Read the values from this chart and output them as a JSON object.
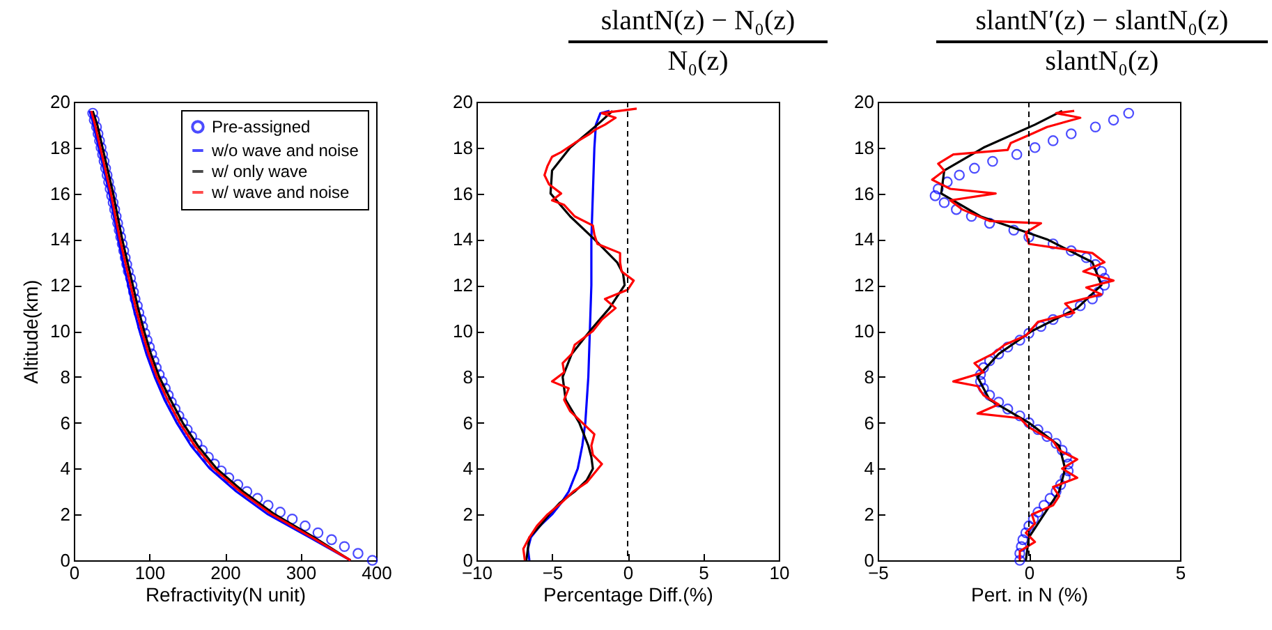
{
  "chart_data": [
    {
      "type": "line",
      "xlabel": "Refractivity(N unit)",
      "ylabel": "Altitude(km)",
      "xlim": [
        0,
        400
      ],
      "xticks": [
        0,
        100,
        200,
        300,
        400
      ],
      "ylim": [
        0,
        20
      ],
      "yticks": [
        0,
        2,
        4,
        6,
        8,
        10,
        12,
        14,
        16,
        18,
        20
      ],
      "legend": "top right",
      "series": [
        {
          "name": "Pre-assigned",
          "type": "scatter",
          "marker": "circle",
          "color": "#0000ff",
          "x": [
            395,
            376,
            358,
            341,
            323,
            306,
            289,
            273,
            257,
            243,
            229,
            217,
            205,
            195,
            186,
            178,
            170,
            163,
            156,
            150,
            144,
            139,
            134,
            129,
            125,
            121,
            117,
            113,
            109,
            106,
            103,
            100,
            97,
            94,
            91,
            89,
            86,
            84,
            81,
            79,
            77,
            75,
            72,
            70,
            68,
            66,
            64,
            62,
            60,
            58,
            56,
            54,
            52,
            50,
            48,
            46,
            44,
            42,
            40,
            38,
            36,
            34,
            32,
            30,
            27,
            25
          ],
          "values": [
            0,
            0.3,
            0.6,
            0.9,
            1.2,
            1.5,
            1.8,
            2.1,
            2.4,
            2.7,
            3,
            3.3,
            3.6,
            3.9,
            4.2,
            4.5,
            4.8,
            5.1,
            5.4,
            5.7,
            6,
            6.3,
            6.6,
            6.9,
            7.2,
            7.5,
            7.8,
            8.1,
            8.4,
            8.7,
            9,
            9.3,
            9.6,
            9.9,
            10.2,
            10.5,
            10.8,
            11.1,
            11.4,
            11.7,
            12,
            12.3,
            12.6,
            12.9,
            13.2,
            13.5,
            13.8,
            14.1,
            14.4,
            14.7,
            15,
            15.3,
            15.6,
            15.9,
            16.2,
            16.5,
            16.8,
            17.1,
            17.4,
            17.7,
            18,
            18.3,
            18.6,
            18.9,
            19.2,
            19.5
          ]
        },
        {
          "name": "w/o wave and noise",
          "color": "#0000ff",
          "x": [
            366,
            312,
            257,
            215,
            180,
            155,
            136,
            120,
            107,
            96,
            87,
            79,
            72,
            65,
            59,
            53,
            47,
            40,
            33,
            26,
            21
          ],
          "values": [
            0,
            1,
            2,
            3,
            4,
            5,
            6,
            7,
            8,
            9,
            10,
            11,
            12,
            13,
            14,
            15,
            16,
            17,
            18,
            19,
            19.6
          ]
        },
        {
          "name": "w/ only wave",
          "color": "#000000",
          "x": [
            366,
            318,
            266,
            224,
            189,
            164,
            144,
            128,
            113,
            102,
            93,
            85,
            78,
            71,
            64,
            58,
            52,
            45,
            38,
            31,
            25
          ],
          "values": [
            0,
            1,
            2,
            3,
            4,
            5,
            6,
            7,
            8,
            9,
            10,
            11,
            12,
            13,
            14,
            15,
            16,
            17,
            18,
            19,
            19.6
          ]
        },
        {
          "name": "w/ wave and noise",
          "color": "#ff0000",
          "x": [
            366,
            315,
            262,
            220,
            185,
            160,
            140,
            124,
            110,
            99,
            90,
            82,
            75,
            68,
            61,
            55,
            49,
            42,
            35,
            28,
            23
          ],
          "values": [
            0,
            1,
            2,
            3,
            4,
            5,
            6,
            7,
            8,
            9,
            10,
            11,
            12,
            13,
            14,
            15,
            16,
            17,
            18,
            19,
            19.6
          ]
        }
      ]
    },
    {
      "type": "line",
      "title": "slantN(z) − N₀(z)",
      "subtitle": "N₀(z)",
      "xlabel": "Percentage Diff.(%)",
      "xlim": [
        -10,
        10
      ],
      "xticks": [
        -10,
        -5,
        0,
        5,
        10
      ],
      "ylim": [
        0,
        20
      ],
      "yticks": [
        0,
        2,
        4,
        6,
        8,
        10,
        12,
        14,
        16,
        18,
        20
      ],
      "ref_lines": [
        {
          "axis": "x",
          "value": 0,
          "line_style": "dashed",
          "color": "#000000"
        }
      ],
      "series": [
        {
          "color": "#0000ff",
          "x": [
            -6.5,
            -6.6,
            -6.4,
            -5.8,
            -5.0,
            -4.4,
            -3.9,
            -3.3,
            -3.0,
            -2.8,
            -2.6,
            -2.5,
            -2.4,
            -2.4,
            -2.3,
            -2.2,
            -2.1,
            -1.8,
            -1.2
          ],
          "values": [
            0,
            0.5,
            1,
            1.5,
            2,
            2.5,
            3,
            4,
            5,
            6,
            8,
            10,
            12,
            14,
            16,
            18,
            19,
            19.5,
            19.6
          ]
        },
        {
          "color": "#000000",
          "x": [
            -6.7,
            -6.5,
            -5.8,
            -5.2,
            -4.5,
            -3.5,
            -2.7,
            -2.3,
            -2.4,
            -2.6,
            -3.2,
            -4.1,
            -4.3,
            -3.7,
            -2.5,
            -1.2,
            -0.2,
            -0.3,
            -0.7,
            -2.2,
            -3.8,
            -5.1,
            -5.0,
            -3.8,
            -2.0,
            -1.0
          ],
          "values": [
            0,
            1,
            1.5,
            2,
            2.5,
            3,
            3.5,
            4,
            4.5,
            5,
            6,
            7,
            8,
            9,
            10,
            11,
            12,
            12.5,
            13,
            14,
            15,
            16,
            17,
            18,
            19,
            19.6
          ]
        },
        {
          "color": "#ff0000",
          "x": [
            -6.8,
            -6.9,
            -6.5,
            -6.0,
            -5.3,
            -4.4,
            -3.6,
            -2.7,
            -2.2,
            -1.7,
            -2.3,
            -2.4,
            -2.2,
            -3.0,
            -3.8,
            -4.2,
            -3.9,
            -5.0,
            -4.2,
            -4.3,
            -3.7,
            -3.5,
            -2.3,
            -1.7,
            -0.8,
            -1.5,
            0.0,
            0.4,
            -0.4,
            -0.5,
            -0.5,
            -2.0,
            -2.2,
            -2.3,
            -3.5,
            -4.2,
            -5.0,
            -4.4,
            -5.2,
            -5.5,
            -5.3,
            -5.0,
            -4.4,
            -3.5,
            -2.5,
            -2.1,
            -1.5,
            -0.8,
            -1.7,
            0.6
          ],
          "values": [
            0,
            0.5,
            1,
            1.5,
            2,
            2.5,
            3,
            3.4,
            3.8,
            4.2,
            4.6,
            5,
            5.5,
            6,
            6.5,
            7,
            7.5,
            7.8,
            8.2,
            8.6,
            9,
            9.4,
            10,
            10.5,
            11,
            11.4,
            11.8,
            12.2,
            12.6,
            13,
            13.4,
            13.8,
            14.2,
            14.6,
            15,
            15.5,
            15.7,
            16,
            16.4,
            16.8,
            17.2,
            17.6,
            17.8,
            18.2,
            18.6,
            18.8,
            19,
            19.3,
            19.5,
            19.7
          ]
        }
      ]
    },
    {
      "type": "line",
      "title": "slantN′(z) − slantN₀(z)",
      "subtitle": "slantN₀(z)",
      "xlabel": "Pert. in N (%)",
      "xlim": [
        -5,
        5
      ],
      "xticks": [
        -5,
        0,
        5
      ],
      "ylim": [
        0,
        20
      ],
      "yticks": [
        0,
        2,
        4,
        6,
        8,
        10,
        12,
        14,
        16,
        18,
        20
      ],
      "ref_lines": [
        {
          "axis": "x",
          "value": 0,
          "line_style": "dashed",
          "color": "#000000"
        }
      ],
      "series": [
        {
          "type": "scatter",
          "marker": "circle",
          "color": "#0000ff",
          "x": [
            -0.3,
            -0.3,
            -0.25,
            -0.2,
            -0.1,
            0.0,
            0.15,
            0.3,
            0.5,
            0.7,
            0.9,
            1.05,
            1.2,
            1.3,
            1.3,
            1.25,
            1.1,
            0.9,
            0.6,
            0.3,
            0.0,
            -0.3,
            -0.7,
            -1.0,
            -1.3,
            -1.5,
            -1.6,
            -1.6,
            -1.5,
            -1.3,
            -1.0,
            -0.7,
            -0.3,
            0.0,
            0.4,
            0.8,
            1.3,
            1.7,
            2.1,
            2.3,
            2.5,
            2.5,
            2.4,
            2.2,
            1.9,
            1.4,
            0.8,
            0.0,
            -0.5,
            -1.3,
            -1.9,
            -2.4,
            -2.8,
            -3.1,
            -3.0,
            -2.7,
            -2.3,
            -1.8,
            -1.2,
            -0.4,
            0.2,
            0.8,
            1.4,
            2.2,
            2.8,
            3.3
          ],
          "values": [
            0,
            0.3,
            0.6,
            0.9,
            1.2,
            1.5,
            1.8,
            2.1,
            2.4,
            2.7,
            3,
            3.3,
            3.6,
            3.9,
            4.2,
            4.5,
            4.8,
            5.1,
            5.4,
            5.7,
            6,
            6.3,
            6.6,
            6.9,
            7.2,
            7.5,
            7.8,
            8.1,
            8.4,
            8.7,
            9,
            9.3,
            9.6,
            9.9,
            10.2,
            10.5,
            10.8,
            11.1,
            11.4,
            11.7,
            12,
            12.3,
            12.6,
            12.9,
            13.2,
            13.5,
            13.8,
            14.1,
            14.4,
            14.7,
            15,
            15.3,
            15.6,
            15.9,
            16.2,
            16.5,
            16.8,
            17.1,
            17.4,
            17.7,
            18,
            18.3,
            18.6,
            18.9,
            19.2,
            19.5
          ]
        },
        {
          "color": "#000000",
          "x": [
            -0.1,
            0.0,
            0.5,
            1.0,
            1.2,
            1.0,
            0.0,
            -1.3,
            -1.7,
            -1.0,
            0.1,
            1.6,
            2.4,
            2.1,
            0.6,
            -1.6,
            -2.9,
            -2.8,
            -1.5,
            0.2,
            1.1
          ],
          "values": [
            0,
            1,
            2,
            3,
            4,
            5,
            6,
            7,
            8,
            9,
            10,
            11,
            12,
            13,
            14,
            15,
            16,
            17,
            18,
            19,
            19.6
          ]
        },
        {
          "color": "#ff0000",
          "x": [
            -0.3,
            -0.3,
            0.2,
            -0.1,
            0.2,
            0.1,
            0.8,
            1.0,
            0.8,
            1.6,
            1.1,
            1.6,
            1.0,
            0.8,
            0.0,
            -0.3,
            -1.7,
            -1.0,
            -1.5,
            -1.7,
            -2.5,
            -1.5,
            -1.8,
            -1.2,
            -0.8,
            -0.1,
            0.3,
            1.5,
            1.2,
            2.4,
            1.9,
            2.8,
            1.8,
            2.5,
            2.1,
            0.0,
            -0.1,
            0.4,
            -1.3,
            -2.2,
            -2.6,
            -1.1,
            -2.6,
            -3.2,
            -2.8,
            -3.0,
            -2.5,
            -0.7,
            -0.6,
            0.1,
            0.6,
            1.7,
            0.9,
            1.5
          ],
          "values": [
            0,
            0.4,
            0.8,
            1.2,
            1.6,
            2,
            2.4,
            2.8,
            3.2,
            3.6,
            4,
            4.4,
            4.8,
            5.2,
            5.8,
            6.2,
            6.4,
            6.8,
            7.2,
            7.6,
            7.8,
            8.2,
            8.6,
            9,
            9.4,
            9.8,
            10.4,
            10.8,
            11.2,
            11.6,
            11.9,
            12.2,
            12.6,
            13,
            13.4,
            13.8,
            14.3,
            14.7,
            14.8,
            15.3,
            15.7,
            16,
            16.2,
            16.6,
            17,
            17.3,
            17.7,
            17.9,
            18.2,
            18.6,
            18.9,
            19.3,
            19.5,
            19.6
          ]
        }
      ]
    }
  ]
}
